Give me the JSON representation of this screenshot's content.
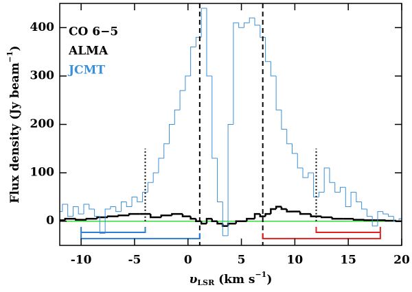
{
  "chart_data": {
    "type": "step",
    "x_label": {
      "main": "υ",
      "sub": "LSR",
      "rest": " (km s",
      "sup": "−1",
      "end": ")"
    },
    "y_label": {
      "main": "Flux density (Jy beam",
      "sup": "−1",
      "end": ")"
    },
    "legend_title": "CO 6−5",
    "xlim": [
      -12,
      20
    ],
    "xticks": [
      -10,
      -5,
      0,
      5,
      10,
      15,
      20
    ],
    "ylim": [
      -50,
      450
    ],
    "yticks": [
      0,
      100,
      200,
      300,
      400
    ],
    "series": [
      {
        "name": "ALMA",
        "color": "#000000",
        "x": [
          -12,
          -11,
          -10,
          -9,
          -8,
          -7,
          -6,
          -5,
          -4,
          -3,
          -2,
          -1,
          0,
          0.5,
          1,
          1.5,
          2,
          2.5,
          3,
          3.5,
          4,
          5,
          6,
          6.5,
          7,
          7.5,
          8,
          8.5,
          9,
          9.5,
          10,
          11,
          12,
          13,
          14,
          15,
          16,
          17,
          18,
          19,
          20
        ],
        "values": [
          2,
          5,
          3,
          5,
          8,
          10,
          12,
          15,
          15,
          8,
          12,
          15,
          10,
          5,
          0,
          -5,
          5,
          0,
          -5,
          -10,
          -5,
          0,
          5,
          15,
          10,
          15,
          25,
          30,
          25,
          20,
          20,
          15,
          10,
          8,
          5,
          5,
          3,
          2,
          2,
          1,
          0
        ]
      },
      {
        "name": "JCMT",
        "color": "#3a8fd9",
        "x": [
          -12,
          -11.5,
          -11,
          -10.5,
          -10,
          -9.5,
          -9,
          -8.5,
          -8,
          -7.5,
          -7,
          -6.5,
          -6,
          -5.5,
          -5,
          -4.5,
          -4,
          -3.5,
          -3,
          -2.5,
          -2,
          -1.5,
          -1,
          -0.5,
          0,
          0.5,
          1,
          1.5,
          2,
          2.5,
          3,
          3.5,
          4,
          4.5,
          5,
          5.5,
          6,
          6.5,
          7,
          7.5,
          8,
          8.5,
          9,
          9.5,
          10,
          10.5,
          11,
          11.5,
          12,
          12.5,
          13,
          13.5,
          14,
          14.5,
          15,
          15.5,
          16,
          16.5,
          17,
          17.5,
          18,
          18.5,
          19,
          19.5,
          20
        ],
        "values": [
          20,
          35,
          10,
          30,
          15,
          35,
          25,
          10,
          -25,
          25,
          30,
          20,
          40,
          30,
          50,
          40,
          60,
          80,
          100,
          130,
          160,
          200,
          230,
          270,
          300,
          360,
          380,
          440,
          300,
          130,
          40,
          -30,
          200,
          410,
          400,
          410,
          420,
          405,
          380,
          330,
          300,
          230,
          190,
          160,
          140,
          110,
          90,
          100,
          50,
          60,
          110,
          80,
          60,
          70,
          30,
          60,
          40,
          25,
          10,
          -10,
          20,
          15,
          10,
          0,
          5
        ]
      }
    ],
    "zero_line": {
      "value": 0,
      "color": "#33dd33"
    },
    "dashed_lines": [
      1.1,
      7.0
    ],
    "dotted_lines": [
      {
        "x": -4,
        "top": 150
      },
      {
        "x": 12,
        "top": 150
      }
    ],
    "brackets": [
      {
        "from": -10,
        "to": -4,
        "y": -23,
        "color": "#2a7fd4"
      },
      {
        "from": -10,
        "to": 1.1,
        "y": -36,
        "color": "#2a7fd4"
      },
      {
        "from": 12,
        "to": 18,
        "y": -23,
        "color": "#e02020"
      },
      {
        "from": 7,
        "to": 18,
        "y": -36,
        "color": "#e02020"
      }
    ]
  }
}
